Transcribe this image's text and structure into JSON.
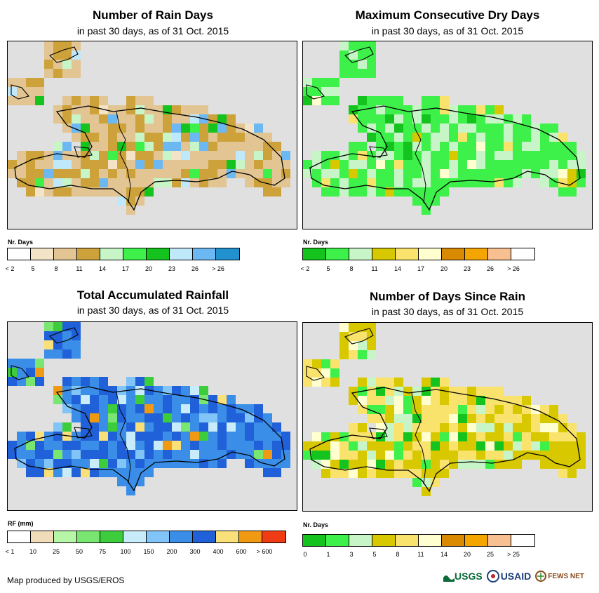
{
  "panels": [
    {
      "title": "Number of Rain Days",
      "subtitle": "in past 30 days, as of 31 Oct. 2015",
      "legend_title": "Nr. Days",
      "legend_colors": [
        "#ffffff",
        "#f3e4c8",
        "#e2c592",
        "#cda23a",
        "#c8f5c8",
        "#3ef04a",
        "#14c31e",
        "#c0e8fb",
        "#6cb8f3",
        "#2291d0"
      ],
      "legend_ticks": [
        "< 2",
        "5",
        "8",
        "11",
        "14",
        "17",
        "20",
        "23",
        "26",
        "> 26"
      ],
      "map_palette": [
        "#e2c592",
        "#cda23a",
        "#c8f5c8",
        "#3ef04a",
        "#14c31e",
        "#c0e8fb",
        "#6cb8f3",
        "#f3e4c8"
      ]
    },
    {
      "title": "Maximum Consecutive Dry Days",
      "subtitle": "in past 30 days, as of 31 Oct. 2015",
      "legend_title": "Nr. Days",
      "legend_colors": [
        "#14c31e",
        "#3ef04a",
        "#c8f5c8",
        "#d8c800",
        "#fae36c",
        "#ffffd0",
        "#d98a00",
        "#f5a500",
        "#f8c090",
        "#ffffff"
      ],
      "legend_ticks": [
        "< 2",
        "5",
        "8",
        "11",
        "14",
        "17",
        "20",
        "23",
        "26",
        "> 26"
      ],
      "map_palette": [
        "#3ef04a",
        "#c8f5c8",
        "#d8c800",
        "#14c31e",
        "#fae36c",
        "#ffffd0"
      ]
    },
    {
      "title": "Total Accumulated Rainfall",
      "subtitle": "in past 30 days, as of 31 Oct. 2015",
      "legend_title": "RF (mm)",
      "legend_colors": [
        "#ffffff",
        "#f0dcb8",
        "#b6f6a6",
        "#78e670",
        "#3ccc3c",
        "#c8ecfa",
        "#80c4f8",
        "#3a8ee8",
        "#2060d8",
        "#fae078",
        "#f09a14",
        "#f03c14"
      ],
      "legend_ticks": [
        "< 1",
        "10",
        "25",
        "50",
        "75",
        "100",
        "150",
        "200",
        "300",
        "400",
        "600",
        "> 600"
      ],
      "map_palette": [
        "#3a8ee8",
        "#2060d8",
        "#80c4f8",
        "#c8ecfa",
        "#3ccc3c",
        "#78e670",
        "#fae078",
        "#f09a14"
      ]
    },
    {
      "title": "Number of Days Since Rain",
      "subtitle": "in past 30 days, as of 31 Oct. 2015",
      "legend_title": "Nr. Days",
      "legend_colors": [
        "#14c31e",
        "#3ef04a",
        "#c8f5c8",
        "#d8c800",
        "#fae36c",
        "#ffffd0",
        "#d98a00",
        "#f5a500",
        "#f8c090",
        "#ffffff"
      ],
      "legend_ticks": [
        "0",
        "1",
        "3",
        "5",
        "8",
        "11",
        "14",
        "20",
        "25",
        "> 25"
      ],
      "map_palette": [
        "#d8c800",
        "#fae36c",
        "#ffffd0",
        "#3ef04a",
        "#14c31e",
        "#c8f5c8"
      ]
    }
  ],
  "credit": "Map produced by USGS/EROS",
  "logos": {
    "usgs": "USGS",
    "usaid": "USAID",
    "fews": "FEWS NET"
  }
}
